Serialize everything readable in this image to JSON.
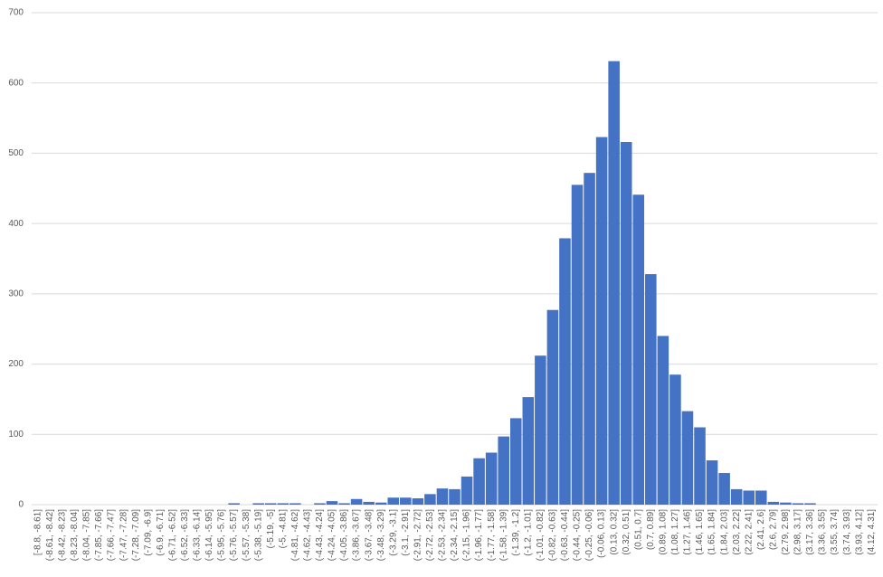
{
  "chart_data": {
    "type": "bar",
    "categories": [
      "[-8.8, -8.61]",
      "(-8.61, -8.42]",
      "(-8.42, -8.23]",
      "(-8.23, -8.04]",
      "(-8.04, -7.85]",
      "(-7.85, -7.66]",
      "(-7.66, -7.47]",
      "(-7.47, -7.28]",
      "(-7.28, -7.09]",
      "(-7.09, -6.9]",
      "(-6.9, -6.71]",
      "(-6.71, -6.52]",
      "(-6.52, -6.33]",
      "(-6.33, -6.14]",
      "(-6.14, -5.95]",
      "(-5.95, -5.76]",
      "(-5.76, -5.57]",
      "(-5.57, -5.38]",
      "(-5.38, -5.19]",
      "(-5.19, -5]",
      "(-5, -4.81]",
      "(-4.81, -4.62]",
      "(-4.62, -4.43]",
      "(-4.43, -4.24]",
      "(-4.24, -4.05]",
      "(-4.05, -3.86]",
      "(-3.86, -3.67]",
      "(-3.67, -3.48]",
      "(-3.48, -3.29]",
      "(-3.29, -3.1]",
      "(-3.1, -2.91]",
      "(-2.91, -2.72]",
      "(-2.72, -2.53]",
      "(-2.53, -2.34]",
      "(-2.34, -2.15]",
      "(-2.15, -1.96]",
      "(-1.96, -1.77]",
      "(-1.77, -1.58]",
      "(-1.58, -1.39]",
      "(-1.39, -1.2]",
      "(-1.2, -1.01]",
      "(-1.01, -0.82]",
      "(-0.82, -0.63]",
      "(-0.63, -0.44]",
      "(-0.44, -0.25]",
      "(-0.25, -0.06]",
      "(-0.06, 0.13]",
      "(0.13, 0.32]",
      "(0.32, 0.51]",
      "(0.51, 0.7]",
      "(0.7, 0.89]",
      "(0.89, 1.08]",
      "(1.08, 1.27]",
      "(1.27, 1.46]",
      "(1.46, 1.65]",
      "(1.65, 1.84]",
      "(1.84, 2.03]",
      "(2.03, 2.22]",
      "(2.22, 2.41]",
      "(2.41, 2.6]",
      "(2.6, 2.79]",
      "(2.79, 2.98]",
      "(2.98, 3.17]",
      "(3.17, 3.36]",
      "(3.36, 3.55]",
      "(3.55, 3.74]",
      "(3.74, 3.93]",
      "(3.93, 4.12]",
      "(4.12, 4.31]"
    ],
    "values": [
      0,
      0,
      0,
      0,
      0,
      0,
      0,
      0,
      0,
      0,
      0,
      0,
      0,
      0,
      0,
      0,
      2,
      0,
      2,
      2,
      2,
      2,
      0,
      2,
      5,
      2,
      8,
      4,
      3,
      10,
      10,
      9,
      15,
      23,
      22,
      40,
      66,
      74,
      97,
      123,
      153,
      212,
      277,
      379,
      455,
      472,
      523,
      631,
      516,
      441,
      328,
      240,
      185,
      133,
      110,
      63,
      45,
      22,
      20,
      20,
      4,
      3,
      2,
      2,
      0,
      0,
      0,
      0,
      0
    ],
    "color": "#4472c4",
    "ylim": [
      0,
      700
    ],
    "yticks": [
      0,
      100,
      200,
      300,
      400,
      500,
      600,
      700
    ],
    "grid": true
  }
}
